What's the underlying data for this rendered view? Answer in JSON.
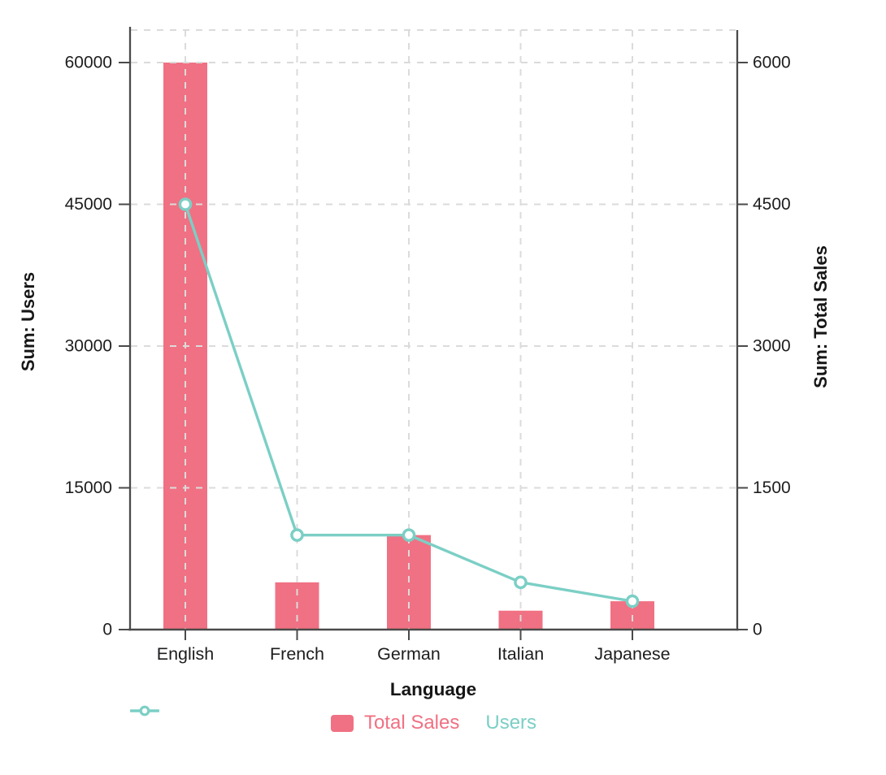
{
  "colors": {
    "bar_pink": "#F07183",
    "line_teal": "#7BCFC5",
    "axis": "#4A4A4A",
    "grid": "#DBDBDB",
    "tick_text": "#1D1D1F",
    "title_text": "#161616",
    "background": "#FFFFFF"
  },
  "chart_data": {
    "type": "bar+line (dual axis combo)",
    "categories": [
      "English",
      "French",
      "German",
      "Italian",
      "Japanese"
    ],
    "series": [
      {
        "name": "Total Sales",
        "type": "bar",
        "axis": "right",
        "color": "#F07183",
        "values": [
          6000,
          500,
          1000,
          200,
          300
        ]
      },
      {
        "name": "Users",
        "type": "line",
        "axis": "left",
        "color": "#7BCFC5",
        "marker": "open-circle",
        "values": [
          45000,
          10000,
          10000,
          5000,
          3000
        ]
      }
    ],
    "title": "",
    "xlabel": "Language",
    "ylabel_left": "Sum: Users",
    "ylabel_right": "Sum: Total Sales",
    "ylim_left": [
      0,
      60000
    ],
    "ylim_right": [
      0,
      6000
    ],
    "yticks_left": [
      0,
      15000,
      30000,
      45000,
      60000
    ],
    "yticks_right": [
      0,
      1500,
      3000,
      4500,
      6000
    ],
    "grid": true,
    "grid_style": "dashed",
    "legend_position": "bottom",
    "background": "#FFFFFF"
  }
}
